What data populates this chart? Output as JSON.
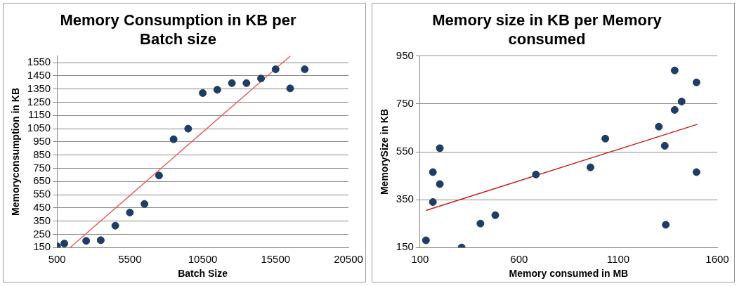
{
  "chart_data": [
    {
      "type": "scatter",
      "title": "Memory Consumption in KB per Batch size",
      "xlabel": "Batch Size",
      "ylabel": "Memoryconsumption in KB",
      "series": [
        {
          "color": "#1f3c64",
          "x": [
            500,
            1000,
            2500,
            3500,
            4500,
            5500,
            6500,
            7500,
            8500,
            9500,
            10500,
            11500,
            12500,
            13500,
            14500,
            15500,
            16500,
            17500
          ],
          "values": [
            160,
            180,
            200,
            205,
            315,
            415,
            480,
            695,
            970,
            1050,
            1320,
            1345,
            1395,
            1395,
            1430,
            1500,
            1355,
            1500
          ]
        },
        {
          "type": "line",
          "color": "#f05a5a",
          "marker": "none",
          "x": [
            1400,
            16500
          ],
          "values": [
            150,
            1600
          ]
        }
      ],
      "xlim": [
        500,
        20500
      ],
      "xticks": [
        500,
        5500,
        10500,
        15500,
        20500
      ],
      "ylim": [
        150,
        1600
      ],
      "yticks": [
        150,
        250,
        350,
        450,
        550,
        650,
        750,
        850,
        950,
        1050,
        1150,
        1250,
        1350,
        1450,
        1550
      ],
      "grid": "y",
      "legend": false,
      "marker": "circle"
    },
    {
      "type": "scatter",
      "title": "Memory size in KB per Memory consumed",
      "xlabel": "Memory consumed in MB",
      "ylabel": "MemorySize in KB",
      "series": [
        {
          "color": "#1f3c64",
          "x": [
            130,
            165,
            165,
            200,
            200,
            310,
            405,
            480,
            685,
            960,
            1035,
            1305,
            1335,
            1340,
            1385,
            1385,
            1420,
            1495,
            1495
          ],
          "values": [
            180,
            465,
            340,
            565,
            415,
            150,
            250,
            285,
            455,
            485,
            605,
            655,
            575,
            245,
            890,
            725,
            760,
            840,
            465
          ]
        },
        {
          "type": "line",
          "color": "#c81e1e",
          "marker": "none",
          "x": [
            130,
            1500
          ],
          "values": [
            305,
            665
          ]
        }
      ],
      "xlim": [
        100,
        1600
      ],
      "xticks": [
        100,
        600,
        1100,
        1600
      ],
      "ylim": [
        150,
        950
      ],
      "yticks": [
        150,
        350,
        550,
        750,
        950
      ],
      "grid": "y",
      "legend": false,
      "marker": "circle"
    }
  ]
}
